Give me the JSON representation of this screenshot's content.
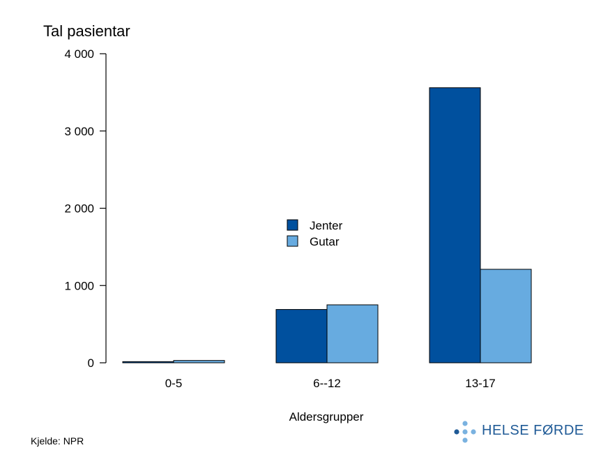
{
  "chart_data": {
    "type": "bar",
    "title": "Tal pasientar",
    "xlabel": "Aldersgrupper",
    "ylabel": "",
    "categories": [
      "0-5",
      "6--12",
      "13-17"
    ],
    "series": [
      {
        "name": "Jenter",
        "color": "#00509e",
        "values": [
          15,
          690,
          3560
        ]
      },
      {
        "name": "Gutar",
        "color": "#67abe0",
        "values": [
          30,
          750,
          1210
        ]
      }
    ],
    "ylim": [
      0,
      4000
    ],
    "yticks": [
      0,
      1000,
      2000,
      3000,
      4000
    ],
    "ytick_labels": [
      "0",
      "1 000",
      "2 000",
      "3 000",
      "4 000"
    ],
    "grid": false,
    "legend_position": "center"
  },
  "source": "Kjelde: NPR",
  "logo": {
    "text": "HELSE FØRDE",
    "color": "#1f5a96",
    "dot_color_dark": "#1f5a96",
    "dot_color_light": "#7ab2e0"
  }
}
